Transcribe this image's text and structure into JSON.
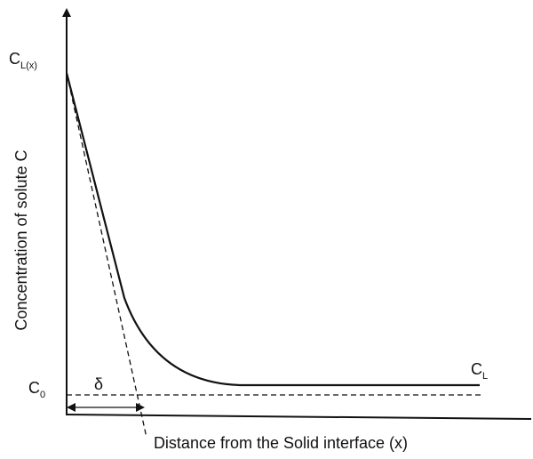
{
  "labels": {
    "c_lx": {
      "main": "C",
      "sub": "L(x)"
    },
    "c_0": {
      "main": "C",
      "sub": "0"
    },
    "c_l": {
      "main": "C",
      "sub": "L"
    },
    "delta": "δ"
  },
  "y_axis_label": "Concentration of solute C",
  "x_axis_label": "Distance from the Solid interface (x)"
}
